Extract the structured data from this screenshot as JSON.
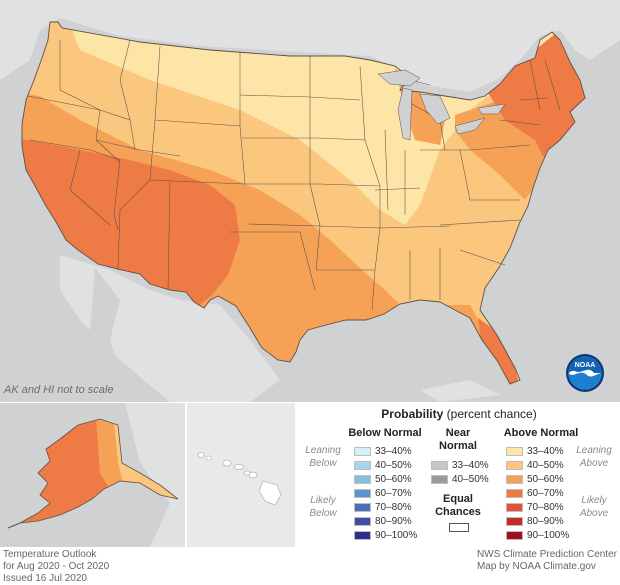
{
  "map": {
    "scale_note": "AK and HI not to scale",
    "logo_text": "NOAA",
    "colors": {
      "background": "#cfd1d3",
      "lean_33_40": "#fde5a8",
      "above_40_50": "#fbc77f",
      "above_50_60": "#f5a257",
      "above_60_70": "#ee7b45",
      "state_border": "#5e5045"
    }
  },
  "legend": {
    "title_bold": "Probability",
    "title_rest": " (percent chance)",
    "below": {
      "header": "Below Normal",
      "lean_label": "Leaning\nBelow",
      "likely_label": "Likely\nBelow",
      "bins": [
        {
          "label": "33–40%",
          "color": "#d6eef8"
        },
        {
          "label": "40–50%",
          "color": "#aad4ec"
        },
        {
          "label": "50–60%",
          "color": "#86bfe0"
        },
        {
          "label": "60–70%",
          "color": "#5e94cd"
        },
        {
          "label": "70–80%",
          "color": "#4a6fb9"
        },
        {
          "label": "80–90%",
          "color": "#3b4fa5"
        },
        {
          "label": "90–100%",
          "color": "#2c2f8c"
        }
      ]
    },
    "near": {
      "header": "Near\nNormal",
      "bins": [
        {
          "label": "33–40%",
          "color": "#c6c6c6"
        },
        {
          "label": "40–50%",
          "color": "#9a9a9a"
        }
      ]
    },
    "equal": {
      "header": "Equal\nChances"
    },
    "above": {
      "header": "Above Normal",
      "lean_label": "Leaning\nAbove",
      "likely_label": "Likely\nAbove",
      "bins": [
        {
          "label": "33–40%",
          "color": "#fde5a8"
        },
        {
          "label": "40–50%",
          "color": "#fbc77f"
        },
        {
          "label": "50–60%",
          "color": "#f5a257"
        },
        {
          "label": "60–70%",
          "color": "#ee7b45"
        },
        {
          "label": "70–80%",
          "color": "#e1513a"
        },
        {
          "label": "80–90%",
          "color": "#c42c2a"
        },
        {
          "label": "90–100%",
          "color": "#9e0f20"
        }
      ]
    }
  },
  "footer": {
    "left_line1": "Temperature Outlook",
    "left_line2": "for Aug 2020 - Oct 2020",
    "left_line3": "Issued 16 Jul 2020",
    "right_line1": "NWS Climate Prediction Center",
    "right_line2": "Map by NOAA Climate.gov"
  }
}
